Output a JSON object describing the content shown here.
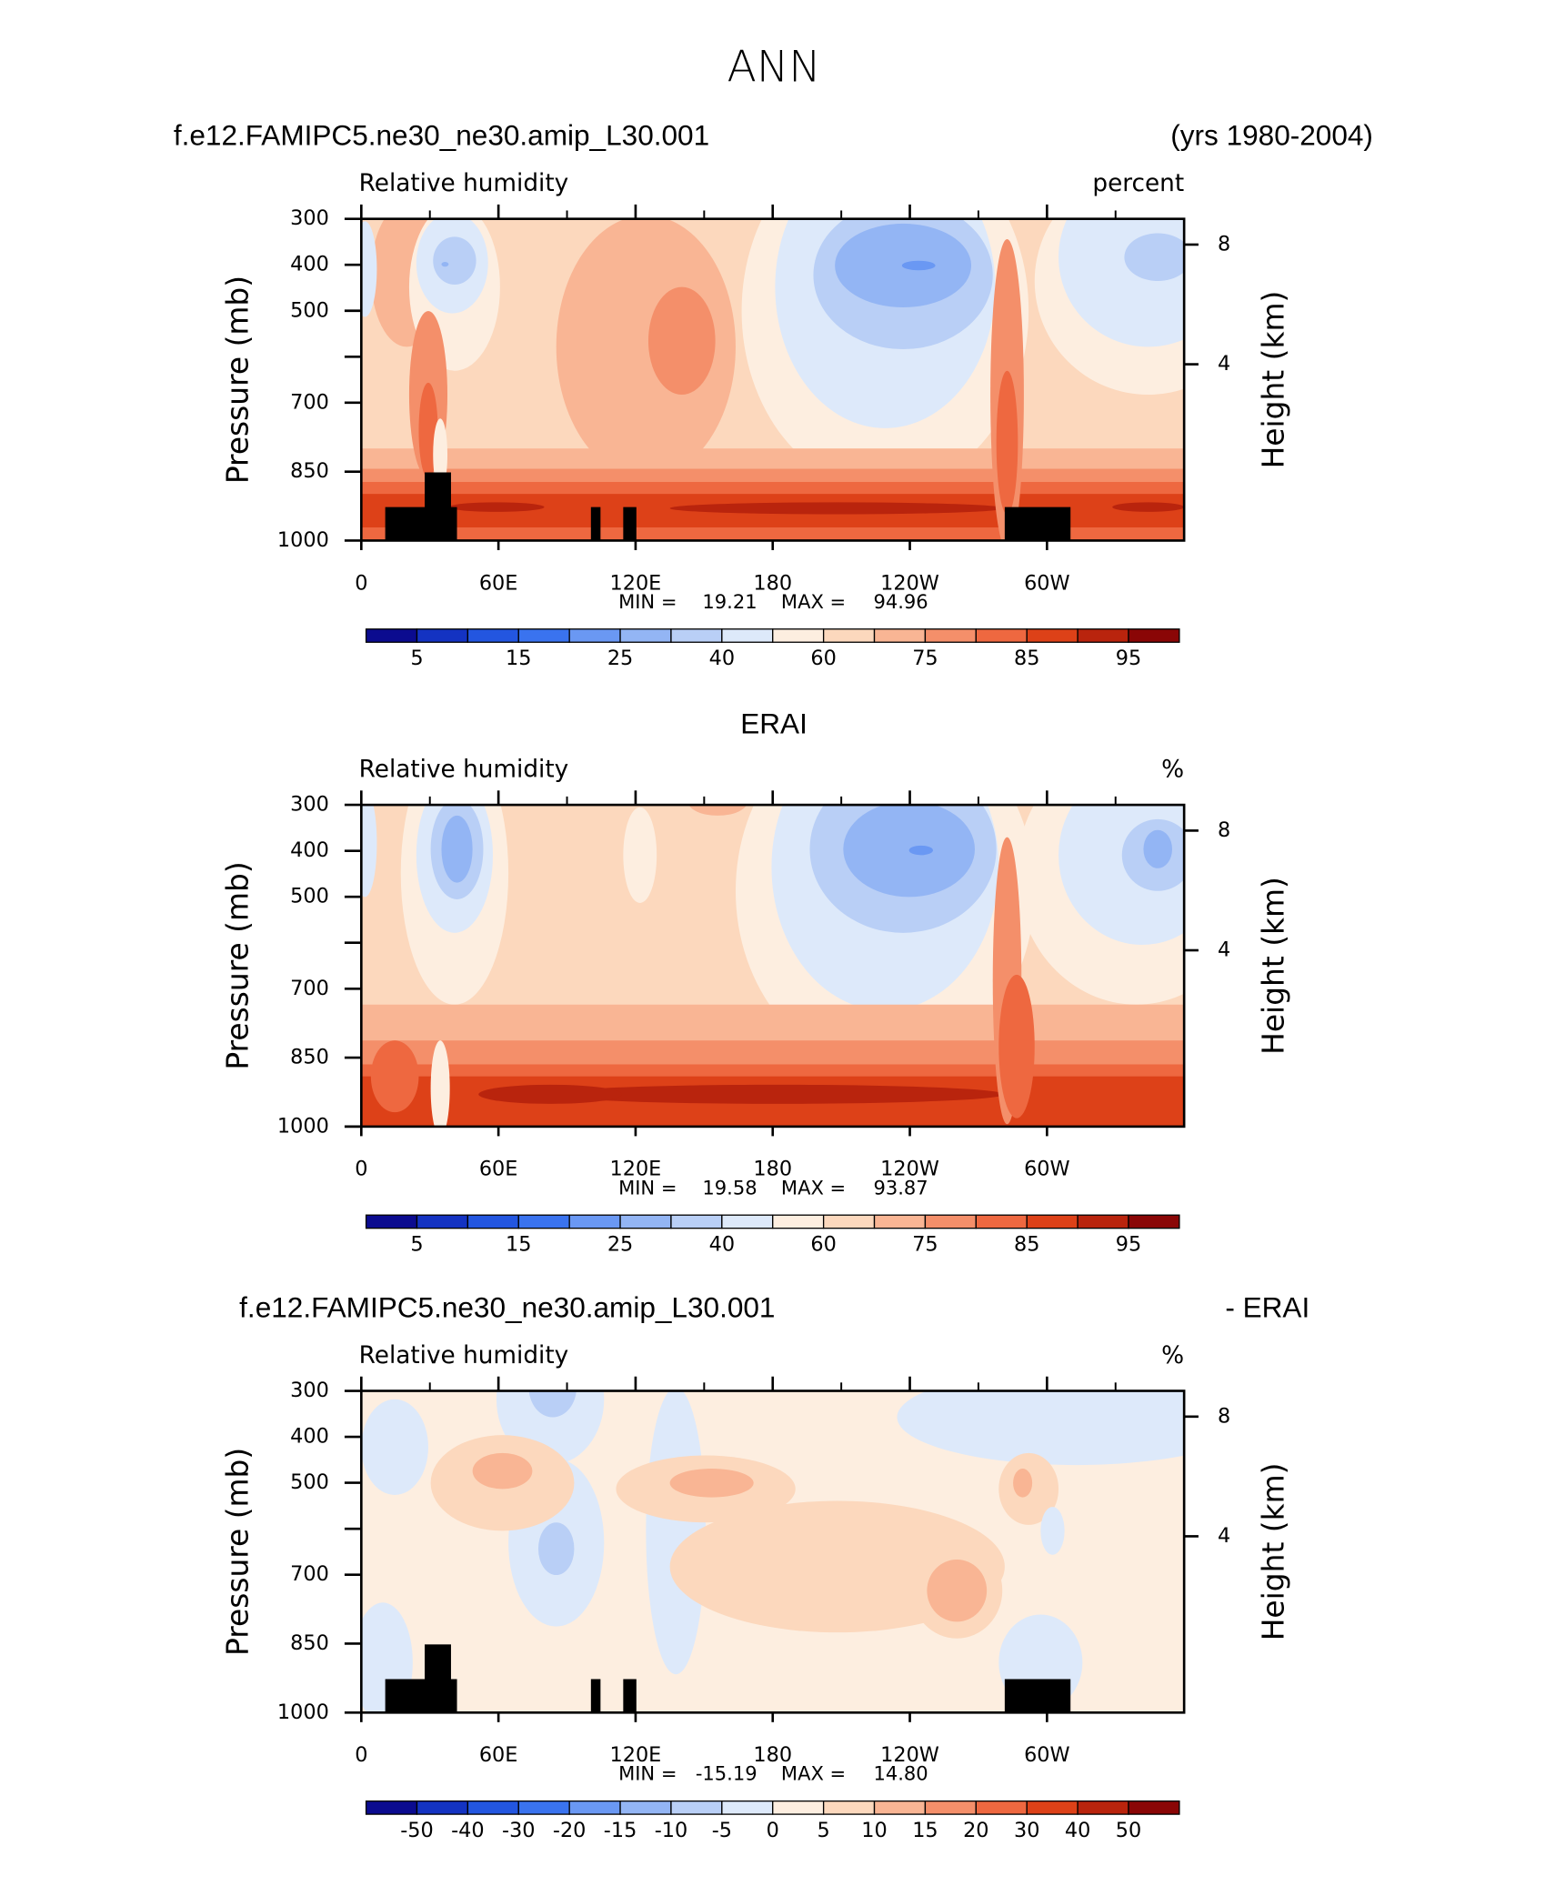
{
  "title": "ANN",
  "chart_data": [
    {
      "type": "contour",
      "title_left": "f.e12.FAMIPC5.ne30_ne30.amip_L30.001",
      "title_right": "(yrs 1980-2004)",
      "subtitle_left": "Relative humidity",
      "subtitle_right": "percent",
      "ylabel": "Pressure (mb)",
      "y2label": "Height (km)",
      "xlim": [
        0,
        360
      ],
      "xticks": [
        0,
        {
          "value": 60,
          "label": "60E"
        },
        {
          "value": 120,
          "label": "120E"
        },
        180,
        {
          "value": 240,
          "label": "120W"
        },
        {
          "value": 300,
          "label": "60W"
        }
      ],
      "xminorticks": [
        30,
        90,
        150,
        210,
        270,
        330
      ],
      "ylim": [
        1000,
        300
      ],
      "yticks": [
        300,
        400,
        500,
        700,
        850,
        1000
      ],
      "yminorticks": [
        600
      ],
      "y2ticks": [
        4,
        8
      ],
      "stats": {
        "labels": [
          "MIN =",
          "MAX ="
        ],
        "values": [
          19.21,
          94.96
        ]
      },
      "colorbar": {
        "levels": [
          5,
          10,
          15,
          20,
          25,
          30,
          40,
          50,
          60,
          70,
          75,
          80,
          85,
          90,
          95
        ],
        "label_step": 2,
        "colors": [
          "#0b0b8f",
          "#1433c2",
          "#2356e0",
          "#3a73ef",
          "#6a98f3",
          "#93b5f4",
          "#b9cff6",
          "#dde9fa",
          "#fdeee0",
          "#fcd8bd",
          "#f9b594",
          "#f48f6a",
          "#ee6840",
          "#dd4118",
          "#b9240d",
          "#8a0606"
        ]
      }
    },
    {
      "type": "contour",
      "title": "ERAI",
      "subtitle_left": "Relative humidity",
      "subtitle_right": "%",
      "ylabel": "Pressure (mb)",
      "y2label": "Height (km)",
      "xlim": [
        0,
        360
      ],
      "xticks": [
        0,
        {
          "value": 60,
          "label": "60E"
        },
        {
          "value": 120,
          "label": "120E"
        },
        180,
        {
          "value": 240,
          "label": "120W"
        },
        {
          "value": 300,
          "label": "60W"
        }
      ],
      "xminorticks": [
        30,
        90,
        150,
        210,
        270,
        330
      ],
      "ylim": [
        1000,
        300
      ],
      "yticks": [
        300,
        400,
        500,
        700,
        850,
        1000
      ],
      "yminorticks": [
        600
      ],
      "y2ticks": [
        4,
        8
      ],
      "stats": {
        "labels": [
          "MIN =",
          "MAX ="
        ],
        "values": [
          19.58,
          93.87
        ]
      },
      "colorbar": {
        "levels": [
          5,
          10,
          15,
          20,
          25,
          30,
          40,
          50,
          60,
          70,
          75,
          80,
          85,
          90,
          95
        ],
        "label_step": 2,
        "colors": [
          "#0b0b8f",
          "#1433c2",
          "#2356e0",
          "#3a73ef",
          "#6a98f3",
          "#93b5f4",
          "#b9cff6",
          "#dde9fa",
          "#fdeee0",
          "#fcd8bd",
          "#f9b594",
          "#f48f6a",
          "#ee6840",
          "#dd4118",
          "#b9240d",
          "#8a0606"
        ]
      }
    },
    {
      "type": "contour",
      "title_left": "f.e12.FAMIPC5.ne30_ne30.amip_L30.001",
      "title_right": "- ERAI",
      "subtitle_left": "Relative humidity",
      "subtitle_right": "%",
      "ylabel": "Pressure (mb)",
      "y2label": "Height (km)",
      "xlim": [
        0,
        360
      ],
      "xticks": [
        0,
        {
          "value": 60,
          "label": "60E"
        },
        {
          "value": 120,
          "label": "120E"
        },
        180,
        {
          "value": 240,
          "label": "120W"
        },
        {
          "value": 300,
          "label": "60W"
        }
      ],
      "xminorticks": [
        30,
        90,
        150,
        210,
        270,
        330
      ],
      "ylim": [
        1000,
        300
      ],
      "yticks": [
        300,
        400,
        500,
        700,
        850,
        1000
      ],
      "yminorticks": [
        600
      ],
      "y2ticks": [
        4,
        8
      ],
      "stats": {
        "labels": [
          "MIN =",
          "MAX ="
        ],
        "values": [
          -15.19,
          14.8
        ],
        "value_labels": [
          "-15.19",
          "14.80"
        ]
      },
      "colorbar": {
        "levels": [
          -50,
          -40,
          -30,
          -20,
          -15,
          -10,
          -5,
          0,
          5,
          10,
          15,
          20,
          30,
          40,
          50
        ],
        "label_step": 1,
        "colors": [
          "#0b0b8f",
          "#1433c2",
          "#2356e0",
          "#3a73ef",
          "#6a98f3",
          "#93b5f4",
          "#b9cff6",
          "#dde9fa",
          "#fdeee0",
          "#fcd8bd",
          "#f9b594",
          "#f48f6a",
          "#ee6840",
          "#dd4118",
          "#b9240d",
          "#8a0606"
        ]
      }
    }
  ]
}
